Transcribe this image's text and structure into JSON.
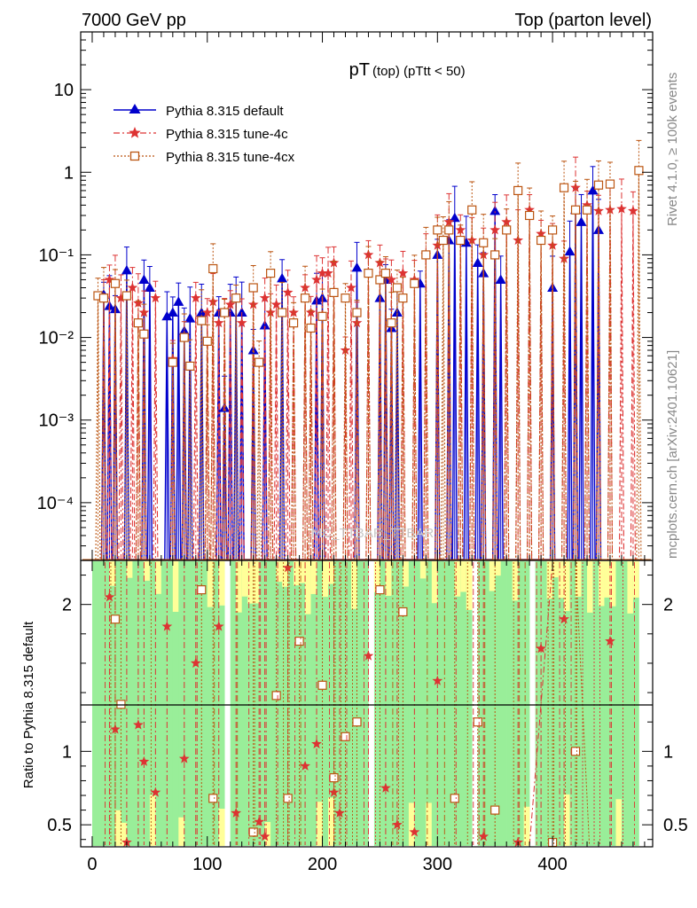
{
  "header": {
    "left": "7000 GeV pp",
    "right": "Top (parton level)"
  },
  "side_labels": {
    "rivet": "Rivet 4.1.0, ≥ 100k events",
    "mcplots": "mcplots.cern.ch [arXiv:2401.10621]"
  },
  "plot_title": {
    "main": "pT",
    "sub": "(top)  (pTtt < 50)"
  },
  "watermark": "MC_TTBAR_TTBAR",
  "colors": {
    "default": "#0000cc",
    "tune4c": "#dd3333",
    "tune4cx": "#bb5511",
    "band_green": "#99ee99",
    "band_yellow": "#ffff99"
  },
  "chart_data": [
    {
      "type": "line",
      "title": "pT (top) (pTtt < 50)",
      "xlabel": "",
      "ylabel": "",
      "yscale": "log",
      "ylim": [
        2e-05,
        50
      ],
      "xlim": [
        -10,
        487
      ],
      "y_ticks": [
        "10",
        "1",
        "10⁻¹",
        "10⁻²",
        "10⁻³",
        "10⁻⁴"
      ],
      "y_tick_values": [
        10,
        1,
        0.1,
        0.01,
        0.001,
        0.0001
      ],
      "legend": [
        "Pythia 8.315 default",
        "Pythia 8.315 tune-4c",
        "Pythia 8.315 tune-4cx"
      ],
      "legend_position": "top-left",
      "series": [
        {
          "name": "Pythia 8.315 default",
          "marker": "triangle",
          "points": [
            [
              10,
              0.033
            ],
            [
              15,
              0.024
            ],
            [
              20,
              0.022
            ],
            [
              30,
              0.065
            ],
            [
              45,
              0.05
            ],
            [
              50,
              0.04
            ],
            [
              65,
              0.018
            ],
            [
              70,
              0.02
            ],
            [
              75,
              0.027
            ],
            [
              80,
              0.012
            ],
            [
              85,
              0.017
            ],
            [
              95,
              0.02
            ],
            [
              110,
              0.02
            ],
            [
              115,
              0.0014
            ],
            [
              120,
              0.02
            ],
            [
              125,
              0.03
            ],
            [
              130,
              0.02
            ],
            [
              140,
              0.007
            ],
            [
              150,
              0.014
            ],
            [
              165,
              0.052
            ],
            [
              195,
              0.028
            ],
            [
              200,
              0.03
            ],
            [
              230,
              0.07
            ],
            [
              250,
              0.03
            ],
            [
              255,
              0.05
            ],
            [
              260,
              0.013
            ],
            [
              265,
              0.02
            ],
            [
              285,
              0.045
            ],
            [
              300,
              0.1
            ],
            [
              310,
              0.15
            ],
            [
              315,
              0.28
            ],
            [
              325,
              0.14
            ],
            [
              335,
              0.08
            ],
            [
              340,
              0.06
            ],
            [
              350,
              0.34
            ],
            [
              355,
              0.05
            ],
            [
              400,
              0.04
            ],
            [
              415,
              0.11
            ],
            [
              420,
              0.35
            ],
            [
              425,
              0.25
            ],
            [
              435,
              0.6
            ],
            [
              440,
              0.2
            ]
          ]
        },
        {
          "name": "Pythia 8.315 tune-4c",
          "marker": "star",
          "points": [
            [
              10,
              0.03
            ],
            [
              15,
              0.05
            ],
            [
              20,
              0.045
            ],
            [
              25,
              0.03
            ],
            [
              35,
              0.04
            ],
            [
              40,
              0.026
            ],
            [
              45,
              0.02
            ],
            [
              55,
              0.03
            ],
            [
              70,
              0.0055
            ],
            [
              80,
              0.01
            ],
            [
              90,
              0.03
            ],
            [
              100,
              0.02
            ],
            [
              105,
              0.027
            ],
            [
              110,
              0.015
            ],
            [
              115,
              0.02
            ],
            [
              120,
              0.025
            ],
            [
              130,
              0.015
            ],
            [
              140,
              0.025
            ],
            [
              150,
              0.03
            ],
            [
              155,
              0.02
            ],
            [
              160,
              0.025
            ],
            [
              170,
              0.035
            ],
            [
              175,
              0.02
            ],
            [
              185,
              0.04
            ],
            [
              190,
              0.02
            ],
            [
              195,
              0.05
            ],
            [
              200,
              0.06
            ],
            [
              205,
              0.06
            ],
            [
              210,
              0.08
            ],
            [
              220,
              0.007
            ],
            [
              225,
              0.04
            ],
            [
              230,
              0.015
            ],
            [
              240,
              0.1
            ],
            [
              250,
              0.08
            ],
            [
              255,
              0.06
            ],
            [
              260,
              0.05
            ],
            [
              270,
              0.06
            ],
            [
              280,
              0.05
            ],
            [
              290,
              0.1
            ],
            [
              300,
              0.13
            ],
            [
              310,
              0.25
            ],
            [
              320,
              0.2
            ],
            [
              330,
              0.15
            ],
            [
              340,
              0.1
            ],
            [
              350,
              0.2
            ],
            [
              360,
              0.25
            ],
            [
              370,
              0.15
            ],
            [
              380,
              0.35
            ],
            [
              390,
              0.18
            ],
            [
              400,
              0.13
            ],
            [
              410,
              0.09
            ],
            [
              420,
              0.65
            ],
            [
              430,
              0.4
            ],
            [
              440,
              0.34
            ],
            [
              450,
              0.35
            ],
            [
              460,
              0.36
            ],
            [
              470,
              0.34
            ]
          ]
        },
        {
          "name": "Pythia 8.315 tune-4cx",
          "marker": "open-square",
          "points": [
            [
              5,
              0.032
            ],
            [
              10,
              0.03
            ],
            [
              20,
              0.045
            ],
            [
              30,
              0.032
            ],
            [
              40,
              0.015
            ],
            [
              45,
              0.011
            ],
            [
              70,
              0.005
            ],
            [
              80,
              0.01
            ],
            [
              85,
              0.0045
            ],
            [
              95,
              0.016
            ],
            [
              100,
              0.009
            ],
            [
              105,
              0.068
            ],
            [
              115,
              0.02
            ],
            [
              125,
              0.03
            ],
            [
              140,
              0.04
            ],
            [
              145,
              0.005
            ],
            [
              155,
              0.06
            ],
            [
              165,
              0.02
            ],
            [
              175,
              0.015
            ],
            [
              185,
              0.03
            ],
            [
              190,
              0.013
            ],
            [
              200,
              0.018
            ],
            [
              210,
              0.035
            ],
            [
              220,
              0.03
            ],
            [
              230,
              0.02
            ],
            [
              240,
              0.06
            ],
            [
              250,
              0.05
            ],
            [
              255,
              0.06
            ],
            [
              260,
              0.015
            ],
            [
              265,
              0.04
            ],
            [
              270,
              0.03
            ],
            [
              280,
              0.045
            ],
            [
              290,
              0.1
            ],
            [
              300,
              0.2
            ],
            [
              305,
              0.15
            ],
            [
              310,
              0.2
            ],
            [
              320,
              0.15
            ],
            [
              330,
              0.35
            ],
            [
              340,
              0.14
            ],
            [
              350,
              0.1
            ],
            [
              360,
              0.2
            ],
            [
              370,
              0.6
            ],
            [
              380,
              0.3
            ],
            [
              390,
              0.15
            ],
            [
              400,
              0.2
            ],
            [
              410,
              0.65
            ],
            [
              420,
              0.35
            ],
            [
              430,
              0.35
            ],
            [
              440,
              0.7
            ],
            [
              450,
              0.72
            ],
            [
              475,
              1.05
            ]
          ]
        }
      ]
    },
    {
      "type": "line",
      "ylabel": "Ratio to Pythia 8.315 default",
      "ylim": [
        0.35,
        2.3
      ],
      "y_ticks": [
        "2",
        "1",
        "0.5"
      ],
      "y_tick_values": [
        2,
        1,
        0.5
      ],
      "x_ticks": [
        "0",
        "100",
        "200",
        "300",
        "400"
      ],
      "x_tick_values": [
        0,
        100,
        200,
        300,
        400
      ],
      "reference": 1,
      "band_xlim": [
        0,
        475
      ],
      "series": [
        {
          "name": "Pythia 8.315 tune-4c",
          "marker": "star",
          "points": [
            [
              15,
              2.05
            ],
            [
              20,
              1.15
            ],
            [
              30,
              0.38
            ],
            [
              40,
              1.18
            ],
            [
              45,
              0.93
            ],
            [
              55,
              0.72
            ],
            [
              65,
              1.85
            ],
            [
              80,
              0.95
            ],
            [
              90,
              1.6
            ],
            [
              110,
              1.85
            ],
            [
              125,
              0.58
            ],
            [
              145,
              0.52
            ],
            [
              150,
              0.42
            ],
            [
              170,
              2.25
            ],
            [
              185,
              0.9
            ],
            [
              195,
              1.05
            ],
            [
              210,
              0.72
            ],
            [
              215,
              0.58
            ],
            [
              240,
              1.65
            ],
            [
              255,
              0.75
            ],
            [
              265,
              0.5
            ],
            [
              280,
              0.45
            ],
            [
              300,
              1.48
            ],
            [
              340,
              0.42
            ],
            [
              370,
              0.38
            ],
            [
              390,
              1.7
            ],
            [
              410,
              1.9
            ],
            [
              450,
              1.75
            ]
          ]
        },
        {
          "name": "Pythia 8.315 tune-4cx",
          "marker": "open-square",
          "points": [
            [
              20,
              1.9
            ],
            [
              25,
              1.32
            ],
            [
              95,
              2.1
            ],
            [
              105,
              0.68
            ],
            [
              140,
              0.45
            ],
            [
              160,
              1.38
            ],
            [
              170,
              0.68
            ],
            [
              180,
              1.75
            ],
            [
              200,
              1.45
            ],
            [
              210,
              0.82
            ],
            [
              220,
              1.1
            ],
            [
              230,
              1.2
            ],
            [
              250,
              2.1
            ],
            [
              270,
              1.95
            ],
            [
              315,
              0.68
            ],
            [
              335,
              1.2
            ],
            [
              350,
              0.6
            ],
            [
              400,
              0.38
            ],
            [
              420,
              1.0
            ]
          ]
        }
      ]
    }
  ]
}
